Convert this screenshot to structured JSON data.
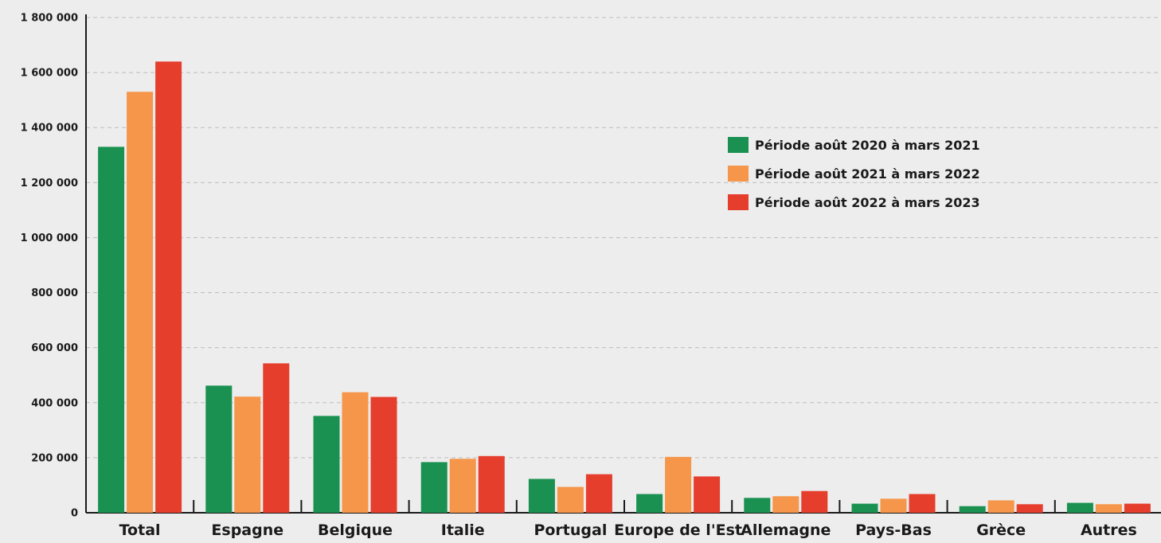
{
  "chart_data": {
    "type": "bar",
    "title": "",
    "xlabel": "",
    "ylabel": "",
    "ylim": [
      0,
      1800000
    ],
    "yticks": [
      0,
      200000,
      400000,
      600000,
      800000,
      1000000,
      1200000,
      1400000,
      1600000,
      1800000
    ],
    "ytick_labels": [
      "0",
      "200 000",
      "400 000",
      "600 000",
      "800 000",
      "1 000 000",
      "1 200 000",
      "1 400 000",
      "1 600 000",
      "1 800 000"
    ],
    "grid": true,
    "legend_position": "upper-right",
    "categories": [
      "Total",
      "Espagne",
      "Belgique",
      "Italie",
      "Portugal",
      "Europe de l'Est",
      "Allemagne",
      "Pays-Bas",
      "Grèce",
      "Autres"
    ],
    "series": [
      {
        "name": "Période août 2020 à mars 2021",
        "color": "#1a9150",
        "values": [
          1330000,
          462000,
          352000,
          184000,
          123000,
          68000,
          54000,
          33000,
          24000,
          36000
        ]
      },
      {
        "name": "Période août 2021 à mars 2022",
        "color": "#f5964a",
        "values": [
          1530000,
          422000,
          438000,
          196000,
          94000,
          203000,
          60000,
          51000,
          45000,
          31000
        ]
      },
      {
        "name": "Période août 2022 à mars 2023",
        "color": "#e63e2d",
        "values": [
          1640000,
          543000,
          421000,
          206000,
          140000,
          132000,
          79000,
          68000,
          31000,
          33000
        ]
      }
    ]
  }
}
